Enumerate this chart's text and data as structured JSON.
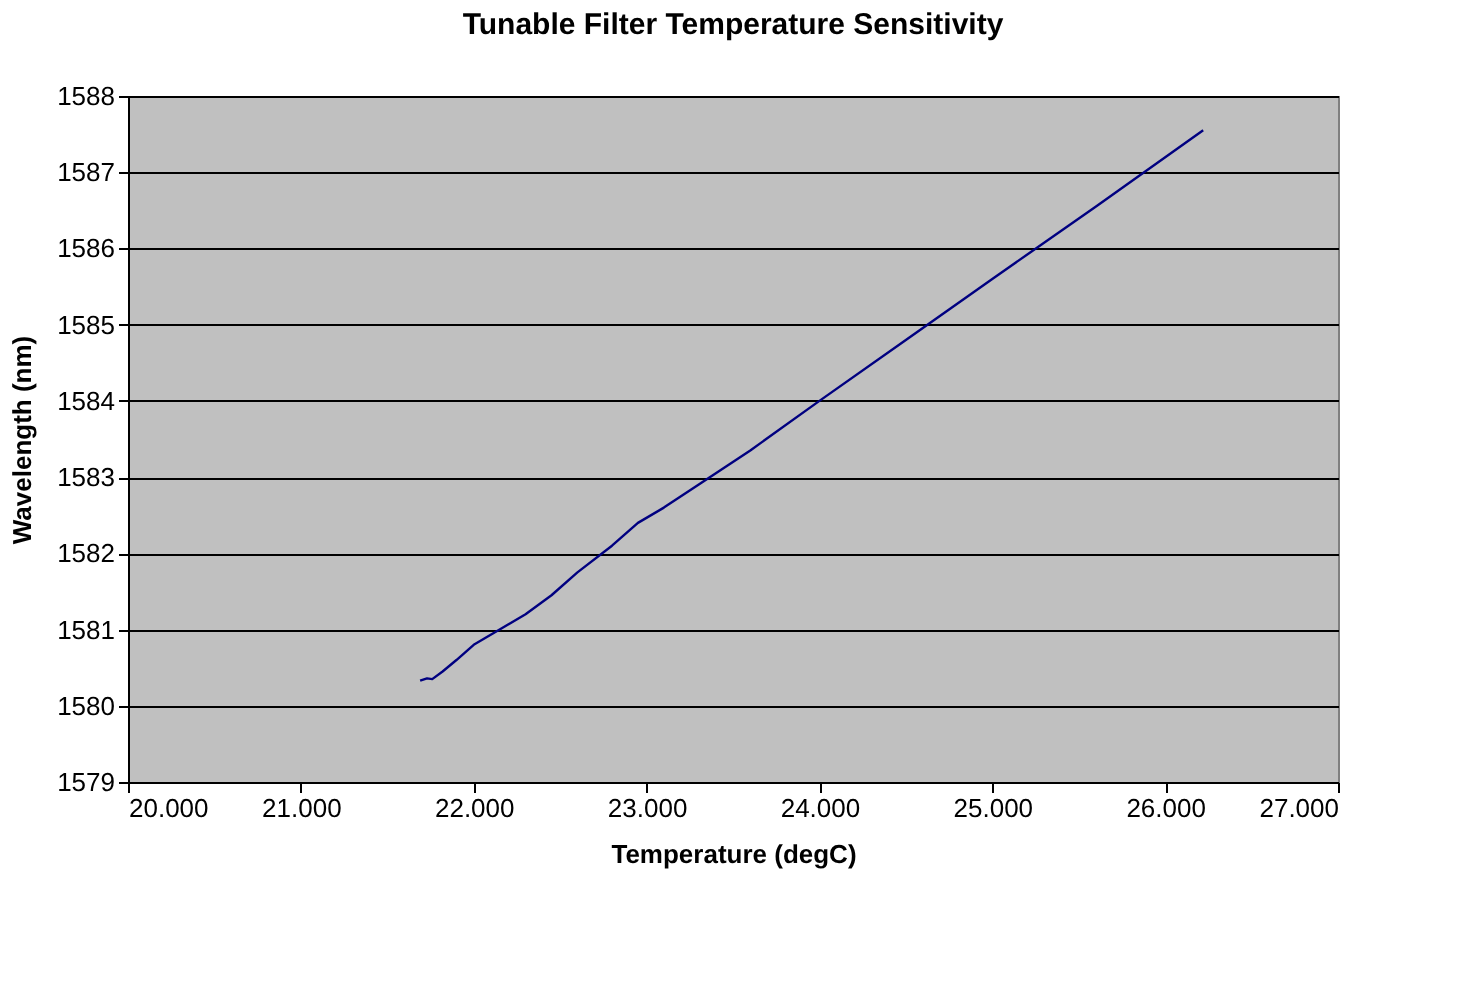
{
  "chart_data": {
    "type": "line",
    "title": "Tunable Filter Temperature Sensitivity",
    "xlabel": "Temperature (degC)",
    "ylabel": "Wavelength (nm)",
    "x": [
      21.69,
      21.73,
      21.76,
      21.82,
      21.9,
      22.0,
      22.15,
      22.3,
      22.45,
      22.6,
      22.8,
      22.95,
      23.1,
      23.3,
      23.6,
      24.0,
      24.5,
      25.0,
      25.6,
      26.22
    ],
    "series": [
      {
        "color": "#000080",
        "values": [
          1580.33,
          1580.36,
          1580.35,
          1580.45,
          1580.6,
          1580.8,
          1581.0,
          1581.2,
          1581.45,
          1581.75,
          1582.1,
          1582.4,
          1582.6,
          1582.9,
          1583.35,
          1584.0,
          1584.8,
          1585.6,
          1586.55,
          1587.55
        ]
      }
    ],
    "xlim": [
      20,
      27
    ],
    "xticks": [
      {
        "value": 20,
        "label": "20.000"
      },
      {
        "value": 21,
        "label": "21.000"
      },
      {
        "value": 22,
        "label": "22.000"
      },
      {
        "value": 23,
        "label": "23.000"
      },
      {
        "value": 24,
        "label": "24.000"
      },
      {
        "value": 25,
        "label": "25.000"
      },
      {
        "value": 26,
        "label": "26.000"
      },
      {
        "value": 27,
        "label": "27.000"
      }
    ],
    "ylim": [
      1579,
      1588
    ],
    "yticks": [
      1579,
      1580,
      1581,
      1582,
      1583,
      1584,
      1585,
      1586,
      1587,
      1588
    ],
    "grid": "y",
    "marker": "none",
    "line_style": "solid"
  }
}
